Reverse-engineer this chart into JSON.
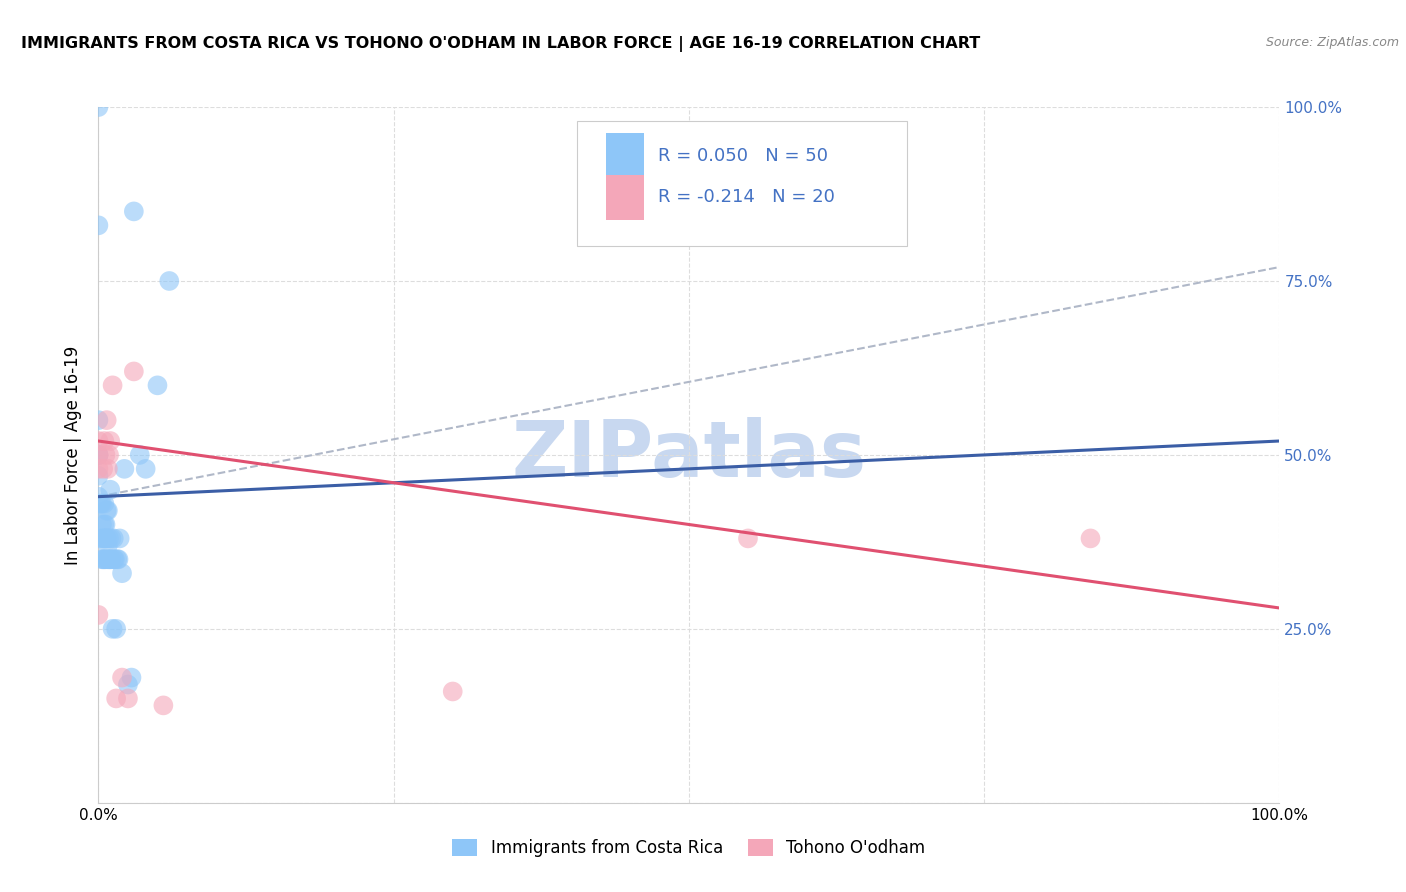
{
  "title": "IMMIGRANTS FROM COSTA RICA VS TOHONO O'ODHAM IN LABOR FORCE | AGE 16-19 CORRELATION CHART",
  "source": "Source: ZipAtlas.com",
  "ylabel": "In Labor Force | Age 16-19",
  "xlim": [
    0.0,
    1.0
  ],
  "ylim": [
    0.0,
    1.0
  ],
  "background_color": "#ffffff",
  "grid_color": "#dddddd",
  "watermark_text": "ZIPatlas",
  "watermark_color": "#c8d8f0",
  "series": [
    {
      "name": "Immigrants from Costa Rica",
      "R": 0.05,
      "N": 50,
      "color": "#8ec6f8",
      "trendline_color": "#3b5ea6",
      "x": [
        0.0,
        0.0,
        0.0,
        0.0,
        0.0,
        0.0,
        0.0,
        0.0,
        0.002,
        0.002,
        0.003,
        0.003,
        0.003,
        0.004,
        0.004,
        0.005,
        0.005,
        0.005,
        0.005,
        0.006,
        0.006,
        0.006,
        0.007,
        0.007,
        0.008,
        0.008,
        0.008,
        0.009,
        0.009,
        0.01,
        0.01,
        0.011,
        0.011,
        0.012,
        0.013,
        0.013,
        0.014,
        0.015,
        0.016,
        0.017,
        0.018,
        0.02,
        0.022,
        0.025,
        0.028,
        0.03,
        0.035,
        0.04,
        0.05,
        0.06
      ],
      "y": [
        0.44,
        0.47,
        0.5,
        0.5,
        0.5,
        0.55,
        1.0,
        0.83,
        0.38,
        0.43,
        0.35,
        0.4,
        0.43,
        0.35,
        0.38,
        0.35,
        0.38,
        0.4,
        0.43,
        0.35,
        0.38,
        0.4,
        0.38,
        0.42,
        0.35,
        0.37,
        0.42,
        0.35,
        0.38,
        0.35,
        0.45,
        0.35,
        0.38,
        0.25,
        0.35,
        0.38,
        0.35,
        0.25,
        0.35,
        0.35,
        0.38,
        0.33,
        0.48,
        0.17,
        0.18,
        0.85,
        0.5,
        0.48,
        0.6,
        0.75
      ],
      "trend_x": [
        0.0,
        1.0
      ],
      "trend_y_start": 0.44,
      "trend_y_end": 0.52
    },
    {
      "name": "Tohono O'odham",
      "R": -0.214,
      "N": 20,
      "color": "#f4a7b9",
      "trendline_color": "#e05070",
      "x": [
        0.0,
        0.0,
        0.0,
        0.0,
        0.004,
        0.005,
        0.006,
        0.007,
        0.008,
        0.009,
        0.01,
        0.012,
        0.015,
        0.02,
        0.025,
        0.03,
        0.055,
        0.84,
        0.3,
        0.55
      ],
      "y": [
        0.27,
        0.48,
        0.5,
        0.52,
        0.48,
        0.52,
        0.5,
        0.55,
        0.48,
        0.5,
        0.52,
        0.6,
        0.15,
        0.18,
        0.15,
        0.62,
        0.14,
        0.38,
        0.16,
        0.38
      ],
      "trend_x": [
        0.0,
        1.0
      ],
      "trend_y_start": 0.52,
      "trend_y_end": 0.28
    }
  ],
  "dashed_line_color": "#b0b8c8",
  "dashed_line_x": [
    0.0,
    1.0
  ],
  "dashed_line_y_start": 0.44,
  "dashed_line_y_end": 0.77,
  "legend_r_color": "#4472c4",
  "bottom_legend": [
    "Immigrants from Costa Rica",
    "Tohono O'odham"
  ],
  "bottom_legend_colors": [
    "#8ec6f8",
    "#f4a7b9"
  ]
}
